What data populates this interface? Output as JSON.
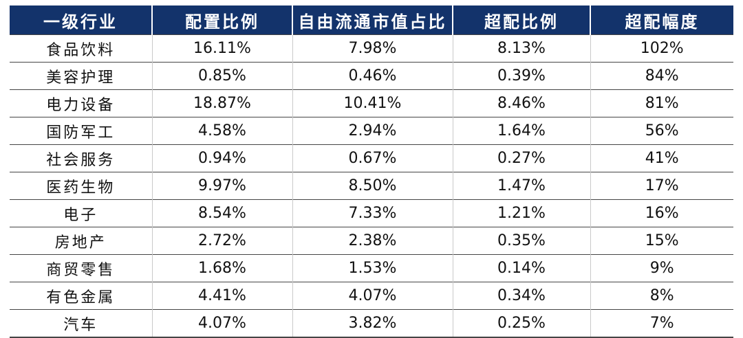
{
  "table": {
    "headers": [
      "一级行业",
      "配置比例",
      "自由流通市值占比",
      "超配比例",
      "超配幅度"
    ],
    "rows": [
      [
        "食品饮料",
        "16.11%",
        "7.98%",
        "8.13%",
        "102%"
      ],
      [
        "美容护理",
        "0.85%",
        "0.46%",
        "0.39%",
        "84%"
      ],
      [
        "电力设备",
        "18.87%",
        "10.41%",
        "8.46%",
        "81%"
      ],
      [
        "国防军工",
        "4.58%",
        "2.94%",
        "1.64%",
        "56%"
      ],
      [
        "社会服务",
        "0.94%",
        "0.67%",
        "0.27%",
        "41%"
      ],
      [
        "医药生物",
        "9.97%",
        "8.50%",
        "1.47%",
        "17%"
      ],
      [
        "电子",
        "8.54%",
        "7.33%",
        "1.21%",
        "16%"
      ],
      [
        "房地产",
        "2.72%",
        "2.38%",
        "0.35%",
        "15%"
      ],
      [
        "商贸零售",
        "1.68%",
        "1.53%",
        "0.14%",
        "9%"
      ],
      [
        "有色金属",
        "4.41%",
        "4.07%",
        "0.34%",
        "8%"
      ],
      [
        "汽车",
        "4.07%",
        "3.82%",
        "0.25%",
        "7%"
      ]
    ]
  },
  "colors": {
    "header_bg": "#13336b",
    "header_text": "#ffffff"
  }
}
